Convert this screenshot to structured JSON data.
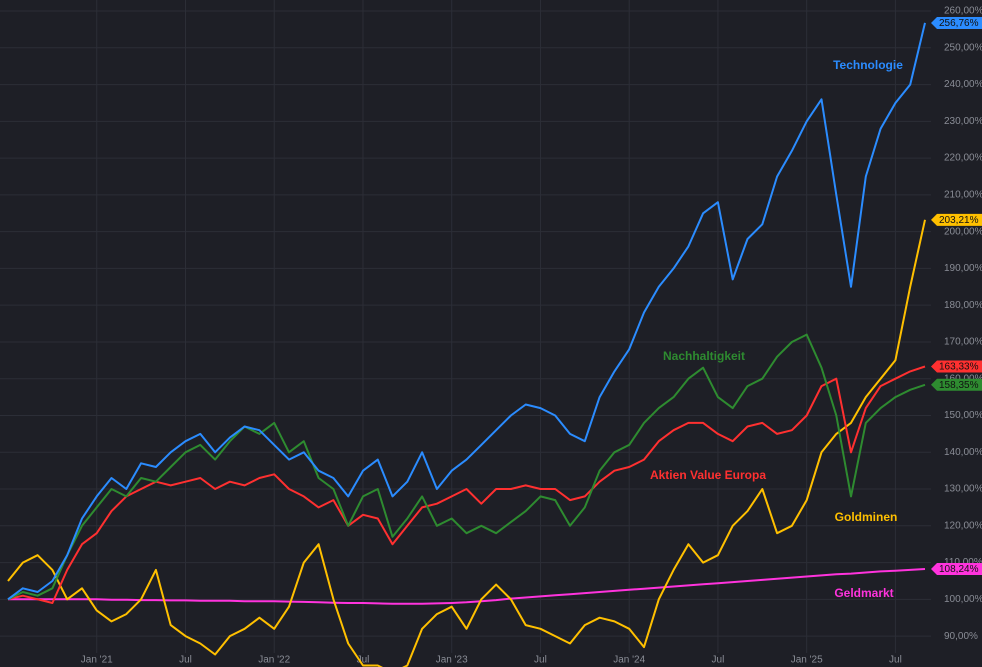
{
  "chart_data": {
    "type": "line",
    "x": [
      "2020-07",
      "2020-08",
      "2020-09",
      "2020-10",
      "2020-11",
      "2020-12",
      "2021-01",
      "2021-02",
      "2021-03",
      "2021-04",
      "2021-05",
      "2021-06",
      "2021-07",
      "2021-08",
      "2021-09",
      "2021-10",
      "2021-11",
      "2021-12",
      "2022-01",
      "2022-02",
      "2022-03",
      "2022-04",
      "2022-05",
      "2022-06",
      "2022-07",
      "2022-08",
      "2022-09",
      "2022-10",
      "2022-11",
      "2022-12",
      "2023-01",
      "2023-02",
      "2023-03",
      "2023-04",
      "2023-05",
      "2023-06",
      "2023-07",
      "2023-08",
      "2023-09",
      "2023-10",
      "2023-11",
      "2023-12",
      "2024-01",
      "2024-02",
      "2024-03",
      "2024-04",
      "2024-05",
      "2024-06",
      "2024-07",
      "2024-08",
      "2024-09",
      "2024-10",
      "2024-11",
      "2024-12",
      "2025-01",
      "2025-02",
      "2025-03",
      "2025-04",
      "2025-05",
      "2025-06",
      "2025-07",
      "2025-08",
      "2025-09"
    ],
    "xlim": [
      "2020-07",
      "2025-09"
    ],
    "xticks": [
      {
        "value": "2021-01",
        "label": "Jan '21"
      },
      {
        "value": "2021-07",
        "label": "Jul"
      },
      {
        "value": "2022-01",
        "label": "Jan '22"
      },
      {
        "value": "2022-07",
        "label": "Jul"
      },
      {
        "value": "2023-01",
        "label": "Jan '23"
      },
      {
        "value": "2023-07",
        "label": "Jul"
      },
      {
        "value": "2024-01",
        "label": "Jan '24"
      },
      {
        "value": "2024-07",
        "label": "Jul"
      },
      {
        "value": "2025-01",
        "label": "Jan '25"
      },
      {
        "value": "2025-07",
        "label": "Jul"
      }
    ],
    "ylim": [
      81.6,
      263
    ],
    "yticks": [
      {
        "value": 90,
        "label": "90,00%"
      },
      {
        "value": 100,
        "label": "100,00%"
      },
      {
        "value": 110,
        "label": "110,00%"
      },
      {
        "value": 120,
        "label": "120,00%"
      },
      {
        "value": 130,
        "label": "130,00%"
      },
      {
        "value": 140,
        "label": "140,00%"
      },
      {
        "value": 150,
        "label": "150,00%"
      },
      {
        "value": 160,
        "label": "160,00%"
      },
      {
        "value": 170,
        "label": "170,00%"
      },
      {
        "value": 180,
        "label": "180,00%"
      },
      {
        "value": 190,
        "label": "190,00%"
      },
      {
        "value": 200,
        "label": "200,00%"
      },
      {
        "value": 210,
        "label": "210,00%"
      },
      {
        "value": 220,
        "label": "220,00%"
      },
      {
        "value": 230,
        "label": "230,00%"
      },
      {
        "value": 240,
        "label": "240,00%"
      },
      {
        "value": 250,
        "label": "250,00%"
      },
      {
        "value": 260,
        "label": "260,00%"
      }
    ],
    "grid": true,
    "series": [
      {
        "name": "Technologie",
        "color": "#2b8cff",
        "end_label": "256,76%",
        "values": [
          100,
          103,
          102,
          105,
          112,
          122,
          128,
          133,
          130,
          137,
          136,
          140,
          143,
          145,
          140,
          144,
          147,
          146,
          142,
          138,
          140,
          135,
          133,
          128,
          135,
          138,
          128,
          132,
          140,
          130,
          135,
          138,
          142,
          146,
          150,
          153,
          152,
          150,
          145,
          143,
          155,
          162,
          168,
          178,
          185,
          190,
          196,
          205,
          208,
          187,
          198,
          202,
          215,
          222,
          230,
          236,
          210,
          185,
          215,
          228,
          235,
          240,
          256.76
        ]
      },
      {
        "name": "Nachhaltigkeit",
        "color": "#2e8b30",
        "end_label": "158,35%",
        "values": [
          100,
          102,
          101,
          103,
          112,
          120,
          125,
          130,
          128,
          133,
          132,
          136,
          140,
          142,
          138,
          143,
          147,
          145,
          148,
          140,
          143,
          133,
          130,
          120,
          128,
          130,
          117,
          122,
          128,
          120,
          122,
          118,
          120,
          118,
          121,
          124,
          128,
          127,
          120,
          125,
          135,
          140,
          142,
          148,
          152,
          155,
          160,
          163,
          155,
          152,
          158,
          160,
          166,
          170,
          172,
          163,
          150,
          128,
          148,
          152,
          155,
          157,
          158.35
        ]
      },
      {
        "name": "Aktien Value Europa",
        "color": "#ff3030",
        "end_label": "163,33%",
        "values": [
          100,
          101,
          100,
          99,
          108,
          115,
          118,
          124,
          128,
          130,
          132,
          131,
          132,
          133,
          130,
          132,
          131,
          133,
          134,
          130,
          128,
          125,
          127,
          120,
          123,
          122,
          115,
          120,
          125,
          126,
          128,
          130,
          126,
          130,
          130,
          131,
          130,
          130,
          127,
          128,
          132,
          135,
          136,
          138,
          143,
          146,
          148,
          148,
          145,
          143,
          147,
          148,
          145,
          146,
          150,
          158,
          160,
          140,
          152,
          158,
          160,
          162,
          163.33
        ]
      },
      {
        "name": "Goldminen",
        "color": "#ffc000",
        "end_label": "203,21%",
        "values": [
          105,
          110,
          112,
          108,
          100,
          103,
          97,
          94,
          96,
          100,
          108,
          93,
          90,
          88,
          85,
          90,
          92,
          95,
          92,
          98,
          110,
          115,
          100,
          88,
          82,
          82,
          80,
          82,
          92,
          96,
          98,
          92,
          100,
          104,
          100,
          93,
          92,
          90,
          88,
          93,
          95,
          94,
          92,
          87,
          100,
          108,
          115,
          110,
          112,
          120,
          124,
          130,
          118,
          120,
          127,
          140,
          145,
          148,
          155,
          160,
          165,
          185,
          203.21
        ]
      },
      {
        "name": "Geldmarkt",
        "color": "#ff33dd",
        "end_label": "108,24%",
        "values": [
          100,
          100,
          100,
          100,
          100,
          100,
          100,
          99.9,
          99.9,
          99.8,
          99.8,
          99.7,
          99.7,
          99.6,
          99.6,
          99.6,
          99.5,
          99.5,
          99.5,
          99.4,
          99.3,
          99.2,
          99.1,
          99,
          99,
          98.9,
          98.8,
          98.8,
          98.8,
          98.9,
          99,
          99.2,
          99.5,
          99.8,
          100.2,
          100.5,
          100.8,
          101.1,
          101.4,
          101.7,
          102,
          102.3,
          102.6,
          102.9,
          103.2,
          103.5,
          103.8,
          104.1,
          104.4,
          104.7,
          105,
          105.3,
          105.6,
          105.9,
          106.2,
          106.5,
          106.8,
          107,
          107.3,
          107.6,
          107.8,
          108,
          108.24
        ]
      }
    ]
  }
}
